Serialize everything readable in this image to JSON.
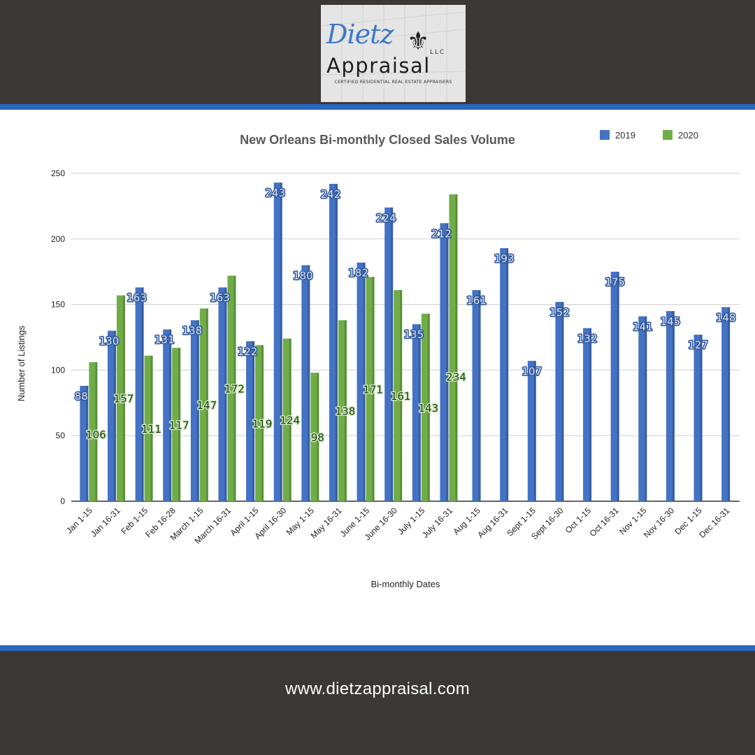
{
  "logo": {
    "script": "Dietz",
    "name": "Appraisal",
    "llc": "LLC",
    "tagline": "CERTIFIED RESIDENTIAL REAL ESTATE APPRAISERS"
  },
  "footer": {
    "website": "www.dietzappraisal.com"
  },
  "colors": {
    "series_2019": "#4472c4",
    "series_2020": "#70ad47",
    "band": "#3b3734",
    "accent": "#2a68c2"
  },
  "chart_data": {
    "type": "bar",
    "title": "New Orleans Bi-monthly Closed Sales Volume",
    "xlabel": "Bi-monthly Dates",
    "ylabel": "Number of Listings",
    "ylim": [
      0,
      250
    ],
    "yticks": [
      "0",
      "50",
      "100",
      "150",
      "200",
      "250"
    ],
    "grid": true,
    "legend_position": "top-right",
    "categories": [
      "Jan 1-15",
      "Jan 16-31",
      "Feb 1-15",
      "Feb 16-28",
      "March 1-15",
      "March 16-31",
      "April 1-15",
      "April 16-30",
      "May 1-15",
      "May 16-31",
      "June 1-15",
      "June 16-30",
      "July 1-15",
      "July 16-31",
      "Aug 1-15",
      "Aug 16-31",
      "Sept 1-15",
      "Sept 16-30",
      "Oct 1-15",
      "Oct 16-31",
      "Nov 1-15",
      "Nov 16-30",
      "Dec 1-15",
      "Dec 16-31"
    ],
    "series": [
      {
        "name": "2019",
        "values": [
          88,
          130,
          163,
          131,
          138,
          163,
          122,
          243,
          180,
          242,
          182,
          224,
          135,
          212,
          161,
          193,
          107,
          152,
          132,
          175,
          141,
          145,
          127,
          148
        ]
      },
      {
        "name": "2020",
        "values": [
          106,
          157,
          111,
          117,
          147,
          172,
          119,
          124,
          98,
          138,
          171,
          161,
          143,
          234,
          null,
          null,
          null,
          null,
          null,
          null,
          null,
          null,
          null,
          null
        ]
      }
    ]
  }
}
